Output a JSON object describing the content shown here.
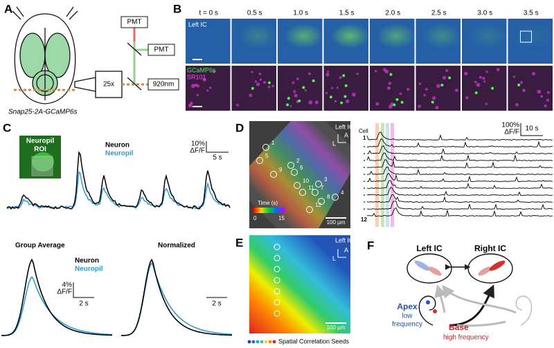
{
  "panel_labels": [
    "A",
    "B",
    "C",
    "D",
    "E",
    "F"
  ],
  "a": {
    "pmt_top": "PMT",
    "pmt_right": "PMT",
    "objective": "25x",
    "laser": "920nm",
    "caption": "Snap25-2A-GCaMP6s"
  },
  "b": {
    "time_labels": [
      "t = 0 s",
      "0.5 s",
      "1.0 s",
      "1.5 s",
      "2.0 s",
      "2.5 s",
      "3.0 s",
      "3.5 s"
    ],
    "region": "Left IC",
    "stain_green": "GCaMP6s",
    "stain_magenta": "SR101"
  },
  "c": {
    "inset": [
      "Neuropil",
      "ROI"
    ],
    "legend": [
      "Neuron",
      "Neuropil"
    ],
    "scale_y": "10%",
    "scale_unit": "ΔF/F",
    "scale_x": "5 s",
    "group_average": {
      "title": "Group Average",
      "legend": [
        "Neuron",
        "Neuropil"
      ],
      "scale_y": "4%",
      "scale_unit": "ΔF/F",
      "scale_x": "2 s"
    },
    "normalized": {
      "title": "Normalized",
      "scale_x": "2 s"
    }
  },
  "d": {
    "region": "Left IC",
    "axis_a": "A",
    "axis_l": "L",
    "cells": [
      "1",
      "2",
      "3",
      "4",
      "5",
      "6",
      "7",
      "8",
      "9",
      "10",
      "11",
      "12"
    ],
    "colorbar_title": "Time (s)",
    "colorbar_min": "0",
    "colorbar_max": "15",
    "scale": "100 µm",
    "cell_header": "Cell",
    "first_cell": "1",
    "last_cell": "12",
    "trace_scale_y": "100%",
    "trace_unit": "ΔF/F",
    "trace_scale_x": "10 s"
  },
  "e": {
    "region": "Left IC",
    "axis_a": "A",
    "axis_l": "L",
    "scale": "100 µm",
    "seeds": "Spatial Correlation Seeds"
  },
  "f": {
    "left": "Left IC",
    "right": "Right IC",
    "apex": "Apex",
    "apex_sub": [
      "low",
      "frequency"
    ],
    "base": "Base",
    "base_sub": "high frequency"
  }
}
